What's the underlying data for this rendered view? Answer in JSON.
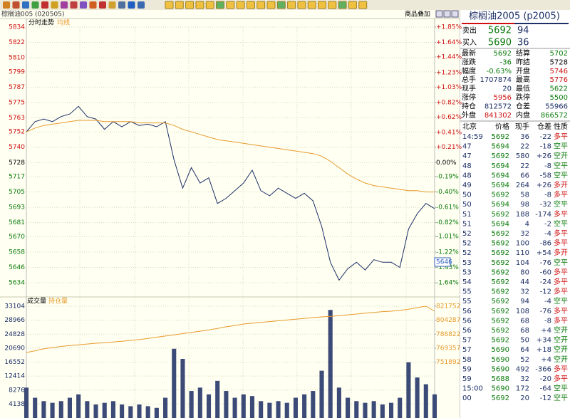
{
  "header": {
    "title": "棕榈油005 (020505)",
    "overlay_button": "商品叠加"
  },
  "chart_data": [
    {
      "type": "line",
      "series": [
        {
          "name": "分时走势",
          "color": "#1c2f66",
          "values": [
            5752,
            5760,
            5762,
            5760,
            5764,
            5766,
            5772,
            5764,
            5762,
            5754,
            5760,
            5756,
            5760,
            5757,
            5758,
            5756,
            5760,
            5730,
            5708,
            5724,
            5712,
            5716,
            5696,
            5700,
            5706,
            5712,
            5722,
            5706,
            5702,
            5708,
            5704,
            5700,
            5704,
            5698,
            5678,
            5650,
            5636,
            5645,
            5650,
            5644,
            5652,
            5650,
            5650,
            5646,
            5676,
            5688,
            5696,
            5692
          ]
        },
        {
          "name": "均线",
          "color": "#e89a2c",
          "values": [
            5752,
            5755,
            5757,
            5758,
            5759,
            5760,
            5761,
            5761,
            5761,
            5760,
            5760,
            5760,
            5760,
            5759,
            5759,
            5759,
            5759,
            5757,
            5754,
            5752,
            5750,
            5748,
            5746,
            5745,
            5744,
            5743,
            5742,
            5741,
            5740,
            5739,
            5738,
            5737,
            5736,
            5735,
            5733,
            5729,
            5724,
            5719,
            5715,
            5712,
            5710,
            5709,
            5708,
            5707,
            5706,
            5706,
            5705,
            5705
          ]
        }
      ],
      "ylim": [
        5634,
        5834
      ],
      "yticks": [
        5834,
        5822,
        5810,
        5799,
        5787,
        5775,
        5763,
        5752,
        5740,
        5728,
        5717,
        5705,
        5693,
        5681,
        5670,
        5658,
        5646,
        5634
      ],
      "y2lim": [
        -1.64,
        1.85
      ],
      "y2ticks": [
        {
          "value": 1.85,
          "label": "+1.85%"
        },
        {
          "value": 1.64,
          "label": "+1.64%"
        },
        {
          "value": 1.44,
          "label": "+1.44%"
        },
        {
          "value": 1.23,
          "label": "+1.23%"
        },
        {
          "value": 1.03,
          "label": "+1.03%"
        },
        {
          "value": 0.82,
          "label": "+0.82%"
        },
        {
          "value": 0.62,
          "label": "+0.62%"
        },
        {
          "value": 0.41,
          "label": "+0.41%"
        },
        {
          "value": 0.21,
          "label": "+0.21%"
        },
        {
          "value": 0,
          "label": "0.00%"
        },
        {
          "value": -0.19,
          "label": "-0.19%"
        },
        {
          "value": -0.4,
          "label": "-0.40%"
        },
        {
          "value": -0.61,
          "label": "-0.61%"
        },
        {
          "value": -0.82,
          "label": "-0.82%"
        },
        {
          "value": -1.01,
          "label": "-1.01%"
        },
        {
          "value": -1.22,
          "label": "-1.22%"
        },
        {
          "value": -1.43,
          "label": "-1.43%"
        },
        {
          "value": -1.64,
          "label": "-1.64%"
        }
      ],
      "grid": true
    },
    {
      "type": "bar",
      "series": [
        {
          "name": "成交量",
          "color": "#3c4a78",
          "values": [
            9000,
            6000,
            5000,
            4500,
            5000,
            6000,
            7000,
            5000,
            4000,
            4500,
            5000,
            4000,
            3500,
            4000,
            3500,
            3000,
            6000,
            20500,
            17500,
            8000,
            9000,
            7000,
            11000,
            8000,
            6000,
            7000,
            6500,
            5000,
            4500,
            5000,
            4500,
            6000,
            7000,
            8000,
            14000,
            32000,
            9000,
            6000,
            5000,
            4500,
            5000,
            4000,
            4500,
            6000,
            16500,
            12000,
            10000,
            7000
          ]
        },
        {
          "name": "持仓量",
          "color": "#e89a2c",
          "axis": "y2",
          "values": [
            763900,
            766000,
            768500,
            770000,
            771500,
            772500,
            773500,
            774500,
            775500,
            776000,
            777000,
            778000,
            779000,
            780000,
            781500,
            783000,
            784500,
            786000,
            787500,
            789000,
            790500,
            792000,
            794000,
            796000,
            797500,
            799500,
            800500,
            801500,
            802500,
            803500,
            804500,
            805500,
            806500,
            807500,
            808400,
            809000,
            810000,
            811000,
            812000,
            813000,
            814000,
            815000,
            815500,
            816500,
            818000,
            820000,
            821752,
            815500
          ]
        }
      ],
      "ylim": [
        0,
        33104
      ],
      "yticks": [
        4138,
        8276,
        12414,
        16552,
        20690,
        24828,
        28966,
        33104
      ],
      "y2lim": [
        682032,
        821752
      ],
      "y2ticks": [
        751892,
        769357,
        786822,
        804287,
        821752
      ],
      "grid": true
    }
  ],
  "cursor_label": "5646",
  "quote": {
    "title": "棕榈油2005 (p2005)",
    "book": [
      {
        "label": "卖出",
        "price": "5692",
        "qty": "94"
      },
      {
        "label": "买入",
        "price": "5690",
        "qty": "36"
      }
    ],
    "stats": [
      {
        "l1": "最新",
        "v1": "5692",
        "c1": "#087a08",
        "l2": "结算",
        "v2": "5702",
        "c2": "#087a08"
      },
      {
        "l1": "涨跌",
        "v1": "-36",
        "c1": "#087a08",
        "l2": "昨结",
        "v2": "5728",
        "c2": "#000000"
      },
      {
        "l1": "幅度",
        "v1": "-0.63%",
        "c1": "#087a08",
        "l2": "开盘",
        "v2": "5746",
        "c2": "#d01010"
      },
      {
        "l1": "总手",
        "v1": "1707874",
        "c1": "#1c2f66",
        "l2": "最高",
        "v2": "5776",
        "c2": "#d01010"
      },
      {
        "l1": "现手",
        "v1": "20",
        "c1": "#1c2f66",
        "l2": "最低",
        "v2": "5622",
        "c2": "#087a08"
      },
      {
        "l1": "涨停",
        "v1": "5956",
        "c1": "#d01010",
        "l2": "跌停",
        "v2": "5500",
        "c2": "#087a08"
      },
      {
        "l1": "持仓",
        "v1": "812572",
        "c1": "#1c2f66",
        "l2": "仓差",
        "v2": "55966",
        "c2": "#1c2f66"
      },
      {
        "l1": "外盘",
        "v1": "841302",
        "c1": "#d01010",
        "l2": "内盘",
        "v2": "866572",
        "c2": "#087a08"
      }
    ],
    "tick_header": [
      "北京",
      "价格",
      "现手",
      "仓差",
      "性质"
    ],
    "ticks": [
      [
        "14:59",
        "5692",
        "36",
        "-22",
        "多平"
      ],
      [
        "47",
        "5694",
        "22",
        "-18",
        "空平"
      ],
      [
        "47",
        "5692",
        "580",
        "+26",
        "空开"
      ],
      [
        "48",
        "5694",
        "22",
        "-8",
        "空平"
      ],
      [
        "48",
        "5694",
        "66",
        "-58",
        "空平"
      ],
      [
        "49",
        "5694",
        "264",
        "+26",
        "多开"
      ],
      [
        "50",
        "5692",
        "58",
        "-8",
        "多平"
      ],
      [
        "50",
        "5694",
        "98",
        "-32",
        "空平"
      ],
      [
        "51",
        "5692",
        "188",
        "-174",
        "多平"
      ],
      [
        "51",
        "5694",
        "4",
        "-2",
        "空平"
      ],
      [
        "52",
        "5692",
        "32",
        "-4",
        "多平"
      ],
      [
        "52",
        "5692",
        "100",
        "-86",
        "多平"
      ],
      [
        "52",
        "5692",
        "110",
        "+54",
        "多开"
      ],
      [
        "53",
        "5692",
        "104",
        "-76",
        "空平"
      ],
      [
        "53",
        "5692",
        "80",
        "-60",
        "多平"
      ],
      [
        "54",
        "5692",
        "44",
        "-24",
        "多平"
      ],
      [
        "55",
        "5692",
        "32",
        "-12",
        "多平"
      ],
      [
        "55",
        "5692",
        "94",
        "-4",
        "空平"
      ],
      [
        "56",
        "5692",
        "108",
        "-76",
        "多平"
      ],
      [
        "56",
        "5692",
        "68",
        "-8",
        "多平"
      ],
      [
        "56",
        "5692",
        "68",
        "+4",
        "空开"
      ],
      [
        "57",
        "5692",
        "50",
        "+34",
        "空开"
      ],
      [
        "57",
        "5690",
        "64",
        "+18",
        "空开"
      ],
      [
        "58",
        "5690",
        "52",
        "+4",
        "空开"
      ],
      [
        "59",
        "5690",
        "492",
        "-366",
        "多平"
      ],
      [
        "59",
        "5688",
        "32",
        "-20",
        "多平"
      ],
      [
        "15:00",
        "5690",
        "172",
        "-64",
        "空平"
      ],
      [
        "00",
        "5692",
        "20",
        "-12",
        "空平"
      ]
    ]
  }
}
